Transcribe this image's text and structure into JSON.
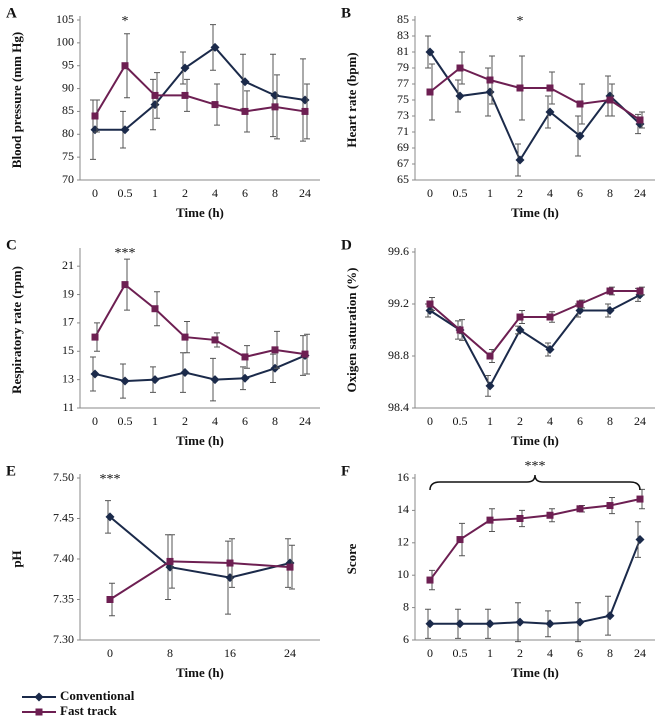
{
  "chart_data": [
    {
      "type": "line",
      "label": "A",
      "xlabel": "Time (h)",
      "ylabel": "Blood pressure (mm Hg)",
      "categories": [
        "0",
        "0.5",
        "1",
        "2",
        "4",
        "6",
        "8",
        "24"
      ],
      "series": [
        {
          "name": "Conventional",
          "color": "#1b2a4a",
          "marker": "diamond",
          "values": [
            81,
            81,
            86.5,
            94.5,
            99,
            91.5,
            88.5,
            87.5
          ],
          "errors": [
            6.5,
            4,
            5.5,
            3.5,
            5,
            6,
            9,
            9
          ]
        },
        {
          "name": "Fast track",
          "color": "#6d1f52",
          "marker": "square",
          "values": [
            84,
            95,
            88.5,
            88.5,
            86.5,
            85,
            86,
            85
          ],
          "errors": [
            3.5,
            7,
            5,
            3.5,
            4.5,
            4.5,
            7,
            6
          ]
        }
      ],
      "ylim": [
        70,
        105
      ],
      "yticks": [
        70,
        75,
        80,
        85,
        90,
        95,
        100,
        105
      ],
      "annotations": [
        {
          "text": "*",
          "x": "0.5"
        }
      ]
    },
    {
      "type": "line",
      "label": "B",
      "xlabel": "Time (h)",
      "ylabel": "Heart rate (bpm)",
      "categories": [
        "0",
        "0.5",
        "1",
        "2",
        "4",
        "6",
        "8",
        "24"
      ],
      "series": [
        {
          "name": "Conventional",
          "color": "#1b2a4a",
          "marker": "diamond",
          "values": [
            81,
            75.5,
            76,
            67.5,
            73.5,
            70.5,
            75.5,
            72
          ],
          "errors": [
            2,
            2,
            3,
            2,
            2,
            2.5,
            2.5,
            1.2
          ]
        },
        {
          "name": "Fast track",
          "color": "#6d1f52",
          "marker": "square",
          "values": [
            76,
            79,
            77.5,
            76.5,
            76.5,
            74.5,
            75,
            72.5
          ],
          "errors": [
            3.5,
            2,
            3,
            4,
            2,
            2.5,
            2,
            1
          ]
        }
      ],
      "ylim": [
        65,
        85
      ],
      "yticks": [
        65,
        67,
        69,
        71,
        73,
        75,
        77,
        79,
        81,
        83,
        85
      ],
      "annotations": [
        {
          "text": "*",
          "x": "2"
        }
      ]
    },
    {
      "type": "line",
      "label": "C",
      "xlabel": "Time (h)",
      "ylabel": "Respiratory rate (rpm)",
      "categories": [
        "0",
        "0.5",
        "1",
        "2",
        "4",
        "6",
        "8",
        "24"
      ],
      "series": [
        {
          "name": "Conventional",
          "color": "#1b2a4a",
          "marker": "diamond",
          "values": [
            13.4,
            12.9,
            13,
            13.5,
            13,
            13.1,
            13.8,
            14.7
          ],
          "errors": [
            1.2,
            1.2,
            0.9,
            1.4,
            1.5,
            0.8,
            1,
            1.4
          ]
        },
        {
          "name": "Fast track",
          "color": "#6d1f52",
          "marker": "square",
          "values": [
            16,
            19.7,
            18,
            16,
            15.8,
            14.6,
            15.1,
            14.8
          ],
          "errors": [
            1,
            1.8,
            1.2,
            1.1,
            0.5,
            0.8,
            1.3,
            1.4
          ]
        }
      ],
      "ylim": [
        11,
        22
      ],
      "yticks": [
        11,
        13,
        15,
        17,
        19,
        21
      ],
      "annotations": [
        {
          "text": "***",
          "x": "0.5"
        }
      ]
    },
    {
      "type": "line",
      "label": "D",
      "xlabel": "Time (h)",
      "ylabel": "Oxigen saturation (%)",
      "categories": [
        "0",
        "0.5",
        "1",
        "2",
        "4",
        "6",
        "8",
        "24"
      ],
      "series": [
        {
          "name": "Conventional",
          "color": "#1b2a4a",
          "marker": "diamond",
          "values": [
            99.15,
            99.0,
            98.57,
            99.0,
            98.85,
            99.15,
            99.15,
            99.27
          ],
          "errors": [
            0.05,
            0.07,
            0.08,
            0.03,
            0.05,
            0.05,
            0.05,
            0.05
          ]
        },
        {
          "name": "Fast track",
          "color": "#6d1f52",
          "marker": "square",
          "values": [
            99.2,
            99.0,
            98.8,
            99.1,
            99.1,
            99.2,
            99.3,
            99.3
          ],
          "errors": [
            0.05,
            0.08,
            0.05,
            0.05,
            0.04,
            0.03,
            0.03,
            0.03
          ]
        }
      ],
      "ylim": [
        98.4,
        99.6
      ],
      "yticks": [
        98.4,
        98.8,
        99.2,
        99.6
      ],
      "annotations": []
    },
    {
      "type": "line",
      "label": "E",
      "xlabel": "Time (h)",
      "ylabel": "pH",
      "categories": [
        "0",
        "8",
        "16",
        "24"
      ],
      "series": [
        {
          "name": "Conventional",
          "color": "#1b2a4a",
          "marker": "diamond",
          "values": [
            7.452,
            7.39,
            7.377,
            7.395
          ],
          "errors": [
            0.02,
            0.04,
            0.045,
            0.03
          ]
        },
        {
          "name": "Fast track",
          "color": "#6d1f52",
          "marker": "square",
          "values": [
            7.35,
            7.397,
            7.395,
            7.39
          ],
          "errors": [
            0.02,
            0.033,
            0.03,
            0.027
          ]
        }
      ],
      "ylim": [
        7.3,
        7.5
      ],
      "yticks": [
        {
          "value": 7.3,
          "label": "7.30"
        },
        7.35,
        {
          "value": 7.4,
          "label": "7.40"
        },
        7.45,
        {
          "value": 7.5,
          "label": "7.50"
        }
      ],
      "annotations": [
        {
          "text": "***",
          "x": "0"
        }
      ]
    },
    {
      "type": "line",
      "label": "F",
      "xlabel": "Time (h)",
      "ylabel": "Score",
      "categories": [
        "0",
        "0.5",
        "1",
        "2",
        "4",
        "6",
        "8",
        "24"
      ],
      "series": [
        {
          "name": "Conventional",
          "color": "#1b2a4a",
          "marker": "diamond",
          "values": [
            7,
            7,
            7,
            7.1,
            7,
            7.1,
            7.5,
            12.2
          ],
          "errors": [
            0.9,
            0.9,
            0.9,
            1.2,
            0.8,
            1.2,
            1.2,
            1.1
          ]
        },
        {
          "name": "Fast track",
          "color": "#6d1f52",
          "marker": "square",
          "values": [
            9.7,
            12.2,
            13.4,
            13.5,
            13.7,
            14.1,
            14.3,
            14.7
          ],
          "errors": [
            0.6,
            1,
            0.7,
            0.5,
            0.4,
            0.2,
            0.5,
            0.6
          ]
        }
      ],
      "ylim": [
        6,
        16
      ],
      "yticks": [
        6,
        8,
        10,
        12,
        14,
        16
      ],
      "annotations": [
        {
          "text": "***",
          "from": "0",
          "to": "24"
        }
      ]
    }
  ]
}
